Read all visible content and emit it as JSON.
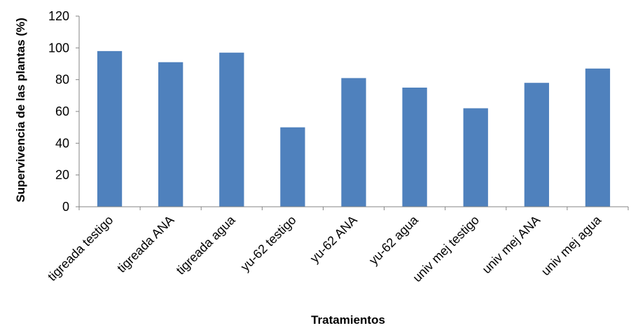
{
  "chart_data": {
    "type": "bar",
    "title": "",
    "xlabel": "Tratamientos",
    "ylabel": "Supervivencia de las plantas (%)",
    "ylim": [
      0,
      120
    ],
    "yticks": [
      0,
      20,
      40,
      60,
      80,
      100,
      120
    ],
    "grid": false,
    "bar_color": "#4f81bd",
    "categories": [
      "tigreada testigo",
      "tigreada ANA",
      "tigreada agua",
      "yu-62 testigo",
      "yu-62 ANA",
      "yu-62 agua",
      "univ mej testigo",
      "univ mej ANA",
      "univ mej agua"
    ],
    "values": [
      98,
      91,
      97,
      50,
      81,
      75,
      62,
      78,
      87
    ]
  }
}
